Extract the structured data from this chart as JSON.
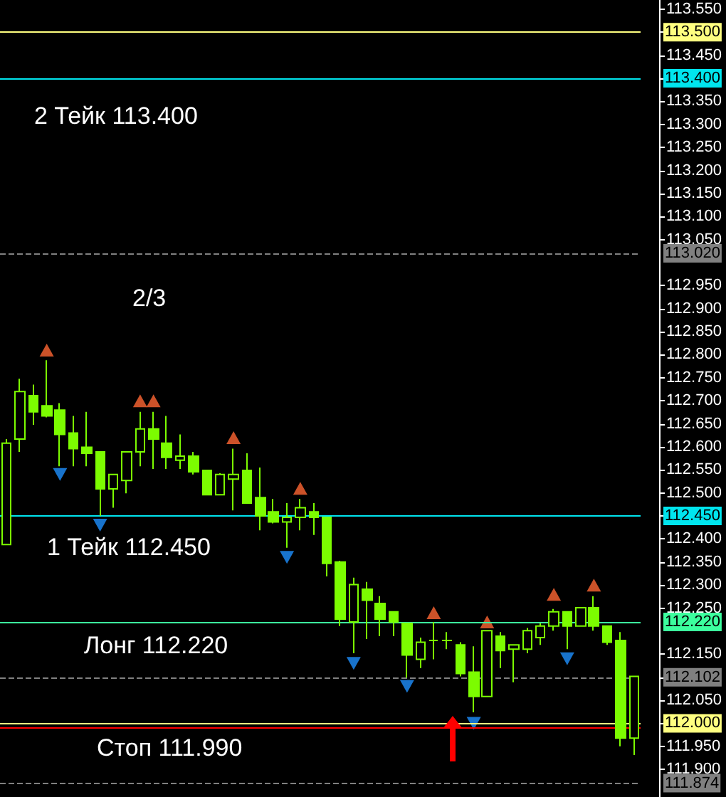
{
  "chart_data": {
    "type": "candlestick",
    "color": "#7cfc00",
    "categories": [
      null,
      null,
      null,
      null,
      null,
      null,
      null,
      null,
      null,
      null,
      null,
      null,
      null,
      null,
      null,
      null,
      null,
      null,
      null,
      null,
      null,
      null,
      null,
      null,
      null,
      null,
      null,
      null,
      null,
      null,
      null,
      null,
      null,
      null,
      null,
      null,
      null,
      null,
      null,
      null,
      null,
      null,
      null,
      null,
      null,
      null,
      null,
      null
    ],
    "ohlc": [
      [
        112.388,
        112.617,
        112.388,
        112.608
      ],
      [
        112.617,
        112.748,
        112.589,
        112.72
      ],
      [
        112.711,
        112.735,
        112.648,
        112.676
      ],
      [
        112.689,
        112.788,
        112.664,
        112.667
      ],
      [
        112.68,
        112.695,
        112.558,
        112.627
      ],
      [
        112.63,
        112.667,
        112.558,
        112.596
      ],
      [
        112.599,
        112.676,
        112.558,
        112.586
      ],
      [
        112.589,
        112.589,
        112.45,
        112.509
      ],
      [
        112.509,
        112.54,
        112.468,
        112.54
      ],
      [
        112.527,
        112.589,
        112.499,
        112.589
      ],
      [
        112.589,
        112.676,
        112.558,
        112.639
      ],
      [
        112.639,
        112.676,
        112.552,
        112.617
      ],
      [
        112.608,
        112.667,
        112.552,
        112.577
      ],
      [
        112.571,
        112.627,
        112.552,
        112.58
      ],
      [
        112.58,
        112.589,
        112.54,
        112.546
      ],
      [
        112.549,
        112.549,
        112.496,
        112.496
      ],
      [
        112.496,
        112.543,
        112.496,
        112.54
      ],
      [
        112.53,
        112.596,
        112.462,
        112.54
      ],
      [
        112.549,
        112.586,
        112.478,
        112.478
      ],
      [
        112.49,
        112.555,
        112.419,
        112.45
      ],
      [
        112.459,
        112.487,
        112.434,
        112.437
      ],
      [
        112.437,
        112.478,
        112.381,
        112.447
      ],
      [
        112.447,
        112.487,
        112.419,
        112.468
      ],
      [
        112.459,
        112.478,
        112.409,
        112.447
      ],
      [
        112.447,
        112.447,
        112.319,
        112.347
      ],
      [
        112.35,
        112.353,
        112.211,
        112.226
      ],
      [
        112.22,
        112.316,
        112.152,
        112.301
      ],
      [
        112.291,
        112.307,
        112.183,
        112.267
      ],
      [
        112.26,
        112.276,
        112.189,
        112.226
      ],
      [
        112.242,
        112.242,
        112.189,
        112.22
      ],
      [
        112.217,
        112.217,
        112.099,
        112.148
      ],
      [
        112.139,
        112.186,
        112.12,
        112.176
      ],
      [
        112.18,
        112.22,
        112.139,
        112.18
      ],
      [
        112.18,
        112.198,
        112.161,
        112.18
      ],
      [
        112.17,
        112.176,
        112.102,
        112.108
      ],
      [
        112.111,
        112.167,
        112.024,
        112.058
      ],
      [
        112.058,
        112.201,
        112.058,
        112.201
      ],
      [
        112.189,
        112.198,
        112.12,
        112.158
      ],
      [
        112.161,
        112.17,
        112.089,
        112.17
      ],
      [
        112.161,
        112.207,
        112.152,
        112.201
      ],
      [
        112.186,
        112.217,
        112.17,
        112.211
      ],
      [
        112.211,
        112.248,
        112.201,
        112.242
      ],
      [
        112.242,
        112.242,
        112.161,
        112.211
      ],
      [
        112.211,
        112.251,
        112.211,
        112.251
      ],
      [
        112.251,
        112.276,
        112.201,
        112.211
      ],
      [
        112.211,
        112.211,
        112.17,
        112.176
      ],
      [
        112.18,
        112.198,
        111.95,
        111.968
      ],
      [
        111.968,
        112.102,
        111.931,
        112.102
      ]
    ],
    "series": [
      {
        "type": "scatter",
        "color": "#ff6633",
        "marker": "triangle",
        "values": [
          null,
          null,
          null,
          112.81,
          null,
          null,
          null,
          null,
          null,
          null,
          112.7,
          112.7,
          null,
          null,
          null,
          null,
          null,
          112.62,
          null,
          null,
          null,
          null,
          112.51,
          null,
          null,
          null,
          null,
          null,
          null,
          null,
          null,
          null,
          112.24,
          null,
          null,
          null,
          112.22,
          null,
          null,
          null,
          null,
          112.28,
          null,
          null,
          112.3,
          null,
          null,
          null
        ]
      },
      {
        "type": "scatter",
        "color": "#1e90ff",
        "marker": "triangle",
        "values": [
          null,
          null,
          null,
          null,
          112.54,
          null,
          null,
          112.43,
          null,
          null,
          null,
          null,
          null,
          null,
          null,
          null,
          null,
          null,
          null,
          null,
          null,
          112.36,
          null,
          null,
          null,
          null,
          112.13,
          null,
          null,
          null,
          112.08,
          null,
          null,
          null,
          null,
          112.0,
          null,
          null,
          null,
          null,
          null,
          null,
          112.14,
          null,
          null,
          null,
          null,
          null
        ]
      }
    ],
    "ylim": [
      111.84,
      113.57
    ],
    "yticks": [
      {
        "value": 111.9,
        "label": "111.900"
      },
      {
        "value": 111.95,
        "label": "111.950"
      },
      {
        "value": 112.0,
        "label": null
      },
      {
        "value": 112.05,
        "label": "112.050"
      },
      {
        "value": 112.1,
        "label": null
      },
      {
        "value": 112.15,
        "label": "112.150"
      },
      {
        "value": 112.25,
        "label": "112.250"
      },
      {
        "value": 112.3,
        "label": "112.300"
      },
      {
        "value": 112.35,
        "label": "112.350"
      },
      {
        "value": 112.4,
        "label": "112.400"
      },
      {
        "value": 112.45,
        "label": null
      },
      {
        "value": 112.5,
        "label": "112.500"
      },
      {
        "value": 112.55,
        "label": "112.550"
      },
      {
        "value": 112.6,
        "label": "112.600"
      },
      {
        "value": 112.65,
        "label": "112.650"
      },
      {
        "value": 112.7,
        "label": "112.700"
      },
      {
        "value": 112.75,
        "label": "112.750"
      },
      {
        "value": 112.8,
        "label": "112.800"
      },
      {
        "value": 112.85,
        "label": "112.850"
      },
      {
        "value": 112.9,
        "label": "112.900"
      },
      {
        "value": 112.95,
        "label": "112.950"
      },
      {
        "value": 113.05,
        "label": "113.050"
      },
      {
        "value": 113.1,
        "label": "113.100"
      },
      {
        "value": 113.15,
        "label": "113.150"
      },
      {
        "value": 113.2,
        "label": "113.200"
      },
      {
        "value": 113.25,
        "label": "113.250"
      },
      {
        "value": 113.3,
        "label": "113.300"
      },
      {
        "value": 113.35,
        "label": "113.350"
      },
      {
        "value": 113.4,
        "label": null
      },
      {
        "value": 113.45,
        "label": "113.450"
      },
      {
        "value": 113.5,
        "label": null
      },
      {
        "value": 113.55,
        "label": "113.550"
      }
    ],
    "ref_lines": [
      {
        "axis": "y",
        "value": 113.5,
        "label": "113.500",
        "color": "#ffff80",
        "line_style": "solid"
      },
      {
        "axis": "y",
        "value": 113.4,
        "label": "113.400",
        "color": "#00e5ee",
        "line_style": "solid"
      },
      {
        "axis": "y",
        "value": 113.02,
        "label": "113.020",
        "color": "#808080",
        "line_style": "dashed"
      },
      {
        "axis": "y",
        "value": 112.45,
        "label": "112.450",
        "color": "#00e5ee",
        "line_style": "solid"
      },
      {
        "axis": "y",
        "value": 112.22,
        "label": "112.220",
        "color": "#3cff9e",
        "line_style": "solid"
      },
      {
        "axis": "y",
        "value": 112.102,
        "label": "112.102",
        "color": "#808080",
        "line_style": "dashed"
      },
      {
        "axis": "y",
        "value": 112.0,
        "label": "112.000",
        "color": "#ffff80",
        "line_style": "solid"
      },
      {
        "axis": "y",
        "value": 111.99,
        "label": null,
        "color": "#ff0000",
        "line_style": "solid"
      },
      {
        "axis": "y",
        "value": 111.874,
        "label": "111.874",
        "color": "#808080",
        "line_style": "dashed"
      }
    ],
    "annotations": [
      "2 Тейк 113.400",
      "2/3",
      "1 Тейк 112.450",
      "Лонг 112.220",
      "Стоп 111.990"
    ],
    "tick_labels": "y",
    "grid": false
  }
}
